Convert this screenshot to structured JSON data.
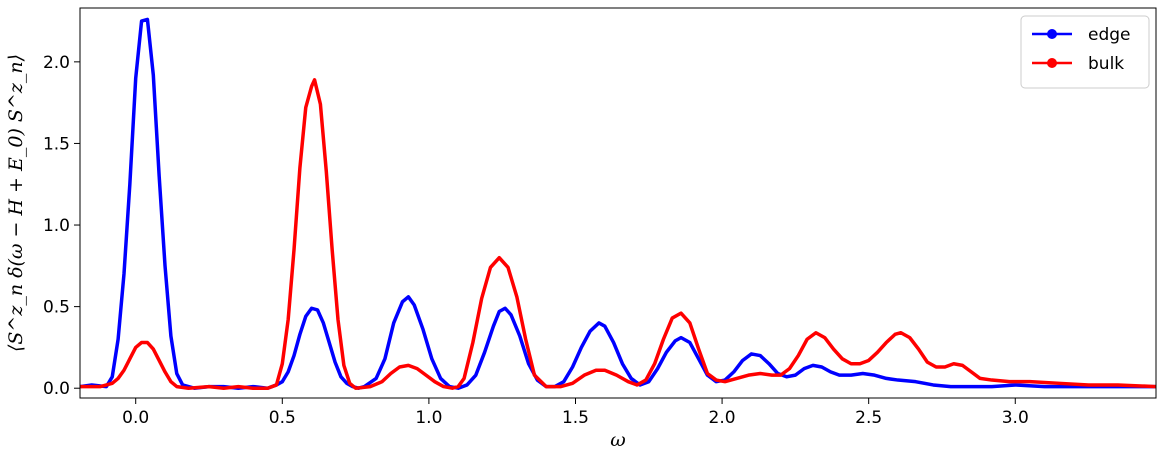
{
  "chart_data": {
    "type": "line",
    "xlabel": "ω",
    "ylabel": "⟨S^z_n δ(ω − H + E_0) S^z_n⟩",
    "xlim": [
      -0.19,
      3.48
    ],
    "ylim": [
      -0.06,
      2.33
    ],
    "x_ticks": [
      "0.0",
      "0.5",
      "1.0",
      "1.5",
      "2.0",
      "2.5",
      "3.0"
    ],
    "y_ticks": [
      "0.0",
      "0.5",
      "1.0",
      "1.5",
      "2.0"
    ],
    "grid": false,
    "legend_position": "top-right",
    "series": [
      {
        "name": "edge",
        "color": "#0000ff",
        "points": [
          [
            -0.19,
            0.01
          ],
          [
            -0.15,
            0.02
          ],
          [
            -0.1,
            0.01
          ],
          [
            -0.08,
            0.07
          ],
          [
            -0.06,
            0.3
          ],
          [
            -0.04,
            0.7
          ],
          [
            -0.02,
            1.25
          ],
          [
            0.0,
            1.9
          ],
          [
            0.02,
            2.25
          ],
          [
            0.04,
            2.26
          ],
          [
            0.06,
            1.92
          ],
          [
            0.08,
            1.3
          ],
          [
            0.1,
            0.75
          ],
          [
            0.12,
            0.32
          ],
          [
            0.14,
            0.09
          ],
          [
            0.16,
            0.02
          ],
          [
            0.2,
            0.0
          ],
          [
            0.25,
            0.01
          ],
          [
            0.3,
            0.01
          ],
          [
            0.35,
            0.0
          ],
          [
            0.4,
            0.01
          ],
          [
            0.45,
            0.0
          ],
          [
            0.48,
            0.02
          ],
          [
            0.5,
            0.04
          ],
          [
            0.52,
            0.1
          ],
          [
            0.54,
            0.2
          ],
          [
            0.56,
            0.33
          ],
          [
            0.58,
            0.44
          ],
          [
            0.6,
            0.49
          ],
          [
            0.62,
            0.48
          ],
          [
            0.64,
            0.4
          ],
          [
            0.66,
            0.28
          ],
          [
            0.68,
            0.16
          ],
          [
            0.7,
            0.07
          ],
          [
            0.72,
            0.03
          ],
          [
            0.74,
            0.01
          ],
          [
            0.76,
            0.0
          ],
          [
            0.78,
            0.01
          ],
          [
            0.82,
            0.06
          ],
          [
            0.85,
            0.18
          ],
          [
            0.88,
            0.4
          ],
          [
            0.91,
            0.53
          ],
          [
            0.93,
            0.56
          ],
          [
            0.95,
            0.51
          ],
          [
            0.98,
            0.36
          ],
          [
            1.01,
            0.18
          ],
          [
            1.04,
            0.06
          ],
          [
            1.07,
            0.01
          ],
          [
            1.1,
            0.0
          ],
          [
            1.13,
            0.02
          ],
          [
            1.16,
            0.08
          ],
          [
            1.19,
            0.22
          ],
          [
            1.22,
            0.38
          ],
          [
            1.24,
            0.47
          ],
          [
            1.26,
            0.49
          ],
          [
            1.28,
            0.45
          ],
          [
            1.31,
            0.32
          ],
          [
            1.34,
            0.15
          ],
          [
            1.37,
            0.05
          ],
          [
            1.4,
            0.01
          ],
          [
            1.43,
            0.01
          ],
          [
            1.46,
            0.04
          ],
          [
            1.49,
            0.13
          ],
          [
            1.52,
            0.25
          ],
          [
            1.55,
            0.35
          ],
          [
            1.58,
            0.4
          ],
          [
            1.6,
            0.38
          ],
          [
            1.63,
            0.28
          ],
          [
            1.66,
            0.15
          ],
          [
            1.69,
            0.06
          ],
          [
            1.72,
            0.02
          ],
          [
            1.75,
            0.04
          ],
          [
            1.78,
            0.12
          ],
          [
            1.81,
            0.22
          ],
          [
            1.84,
            0.29
          ],
          [
            1.86,
            0.31
          ],
          [
            1.89,
            0.28
          ],
          [
            1.92,
            0.18
          ],
          [
            1.95,
            0.08
          ],
          [
            1.98,
            0.04
          ],
          [
            2.01,
            0.05
          ],
          [
            2.04,
            0.1
          ],
          [
            2.07,
            0.17
          ],
          [
            2.1,
            0.21
          ],
          [
            2.13,
            0.2
          ],
          [
            2.16,
            0.15
          ],
          [
            2.19,
            0.09
          ],
          [
            2.22,
            0.07
          ],
          [
            2.25,
            0.08
          ],
          [
            2.28,
            0.12
          ],
          [
            2.31,
            0.14
          ],
          [
            2.34,
            0.13
          ],
          [
            2.37,
            0.1
          ],
          [
            2.4,
            0.08
          ],
          [
            2.44,
            0.08
          ],
          [
            2.48,
            0.09
          ],
          [
            2.52,
            0.08
          ],
          [
            2.56,
            0.06
          ],
          [
            2.6,
            0.05
          ],
          [
            2.66,
            0.04
          ],
          [
            2.72,
            0.02
          ],
          [
            2.78,
            0.01
          ],
          [
            2.85,
            0.01
          ],
          [
            2.92,
            0.01
          ],
          [
            3.0,
            0.02
          ],
          [
            3.1,
            0.01
          ],
          [
            3.2,
            0.01
          ],
          [
            3.3,
            0.01
          ],
          [
            3.4,
            0.01
          ],
          [
            3.48,
            0.01
          ]
        ]
      },
      {
        "name": "bulk",
        "color": "#ff0000",
        "points": [
          [
            -0.19,
            0.01
          ],
          [
            -0.12,
            0.01
          ],
          [
            -0.08,
            0.03
          ],
          [
            -0.06,
            0.06
          ],
          [
            -0.04,
            0.11
          ],
          [
            -0.02,
            0.18
          ],
          [
            0.0,
            0.25
          ],
          [
            0.02,
            0.28
          ],
          [
            0.04,
            0.28
          ],
          [
            0.06,
            0.24
          ],
          [
            0.08,
            0.17
          ],
          [
            0.1,
            0.1
          ],
          [
            0.12,
            0.04
          ],
          [
            0.14,
            0.01
          ],
          [
            0.18,
            0.0
          ],
          [
            0.25,
            0.01
          ],
          [
            0.3,
            0.0
          ],
          [
            0.35,
            0.01
          ],
          [
            0.4,
            0.0
          ],
          [
            0.45,
            0.0
          ],
          [
            0.48,
            0.02
          ],
          [
            0.5,
            0.15
          ],
          [
            0.52,
            0.42
          ],
          [
            0.54,
            0.85
          ],
          [
            0.56,
            1.35
          ],
          [
            0.58,
            1.72
          ],
          [
            0.6,
            1.85
          ],
          [
            0.61,
            1.89
          ],
          [
            0.63,
            1.74
          ],
          [
            0.65,
            1.33
          ],
          [
            0.67,
            0.85
          ],
          [
            0.69,
            0.42
          ],
          [
            0.71,
            0.14
          ],
          [
            0.73,
            0.03
          ],
          [
            0.75,
            0.0
          ],
          [
            0.8,
            0.01
          ],
          [
            0.84,
            0.04
          ],
          [
            0.87,
            0.09
          ],
          [
            0.9,
            0.13
          ],
          [
            0.93,
            0.14
          ],
          [
            0.96,
            0.12
          ],
          [
            0.99,
            0.08
          ],
          [
            1.02,
            0.04
          ],
          [
            1.05,
            0.01
          ],
          [
            1.08,
            0.0
          ],
          [
            1.1,
            0.01
          ],
          [
            1.12,
            0.06
          ],
          [
            1.15,
            0.28
          ],
          [
            1.18,
            0.55
          ],
          [
            1.21,
            0.74
          ],
          [
            1.24,
            0.8
          ],
          [
            1.27,
            0.74
          ],
          [
            1.3,
            0.56
          ],
          [
            1.33,
            0.3
          ],
          [
            1.36,
            0.08
          ],
          [
            1.4,
            0.01
          ],
          [
            1.45,
            0.01
          ],
          [
            1.49,
            0.03
          ],
          [
            1.53,
            0.08
          ],
          [
            1.57,
            0.11
          ],
          [
            1.6,
            0.11
          ],
          [
            1.64,
            0.08
          ],
          [
            1.68,
            0.04
          ],
          [
            1.71,
            0.02
          ],
          [
            1.74,
            0.05
          ],
          [
            1.77,
            0.15
          ],
          [
            1.8,
            0.3
          ],
          [
            1.83,
            0.43
          ],
          [
            1.86,
            0.46
          ],
          [
            1.89,
            0.4
          ],
          [
            1.92,
            0.24
          ],
          [
            1.95,
            0.09
          ],
          [
            1.98,
            0.05
          ],
          [
            2.01,
            0.04
          ],
          [
            2.05,
            0.06
          ],
          [
            2.09,
            0.08
          ],
          [
            2.13,
            0.09
          ],
          [
            2.17,
            0.08
          ],
          [
            2.2,
            0.08
          ],
          [
            2.23,
            0.12
          ],
          [
            2.26,
            0.2
          ],
          [
            2.29,
            0.3
          ],
          [
            2.32,
            0.34
          ],
          [
            2.35,
            0.31
          ],
          [
            2.38,
            0.24
          ],
          [
            2.41,
            0.18
          ],
          [
            2.44,
            0.15
          ],
          [
            2.47,
            0.15
          ],
          [
            2.5,
            0.17
          ],
          [
            2.53,
            0.22
          ],
          [
            2.56,
            0.28
          ],
          [
            2.59,
            0.33
          ],
          [
            2.61,
            0.34
          ],
          [
            2.64,
            0.31
          ],
          [
            2.67,
            0.24
          ],
          [
            2.7,
            0.16
          ],
          [
            2.73,
            0.13
          ],
          [
            2.76,
            0.13
          ],
          [
            2.79,
            0.15
          ],
          [
            2.82,
            0.14
          ],
          [
            2.85,
            0.1
          ],
          [
            2.88,
            0.06
          ],
          [
            2.92,
            0.05
          ],
          [
            2.98,
            0.04
          ],
          [
            3.05,
            0.04
          ],
          [
            3.15,
            0.03
          ],
          [
            3.25,
            0.02
          ],
          [
            3.35,
            0.02
          ],
          [
            3.48,
            0.01
          ]
        ]
      }
    ]
  }
}
